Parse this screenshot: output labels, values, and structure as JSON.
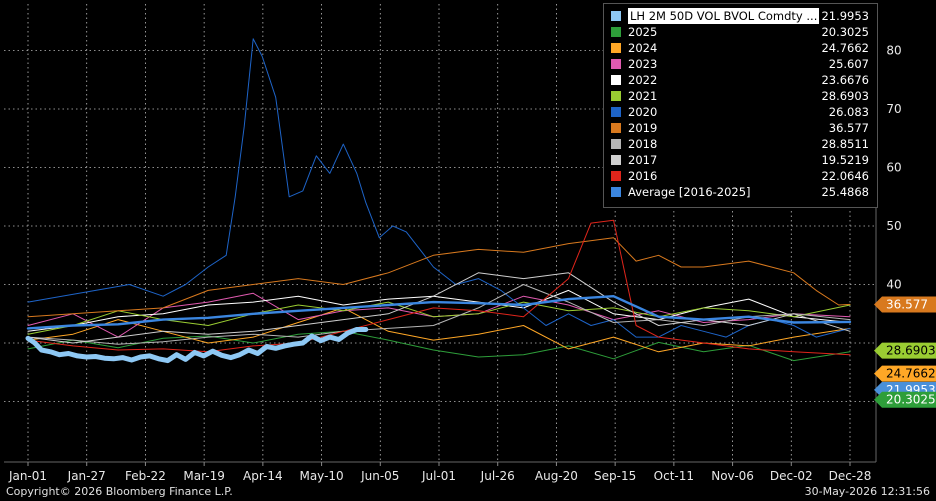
{
  "chart_data": {
    "type": "line",
    "ylim": [
      0,
      90
    ],
    "yticks": [
      40,
      50,
      60,
      70,
      80
    ],
    "x_tick_labels": [
      "Jan-01",
      "Jan-27",
      "Feb-22",
      "Mar-19",
      "Apr-14",
      "May-10",
      "Jun-05",
      "Jul-01",
      "Jul-26",
      "Aug-20",
      "Sep-15",
      "Oct-11",
      "Nov-06",
      "Dec-02",
      "Dec-28"
    ],
    "grid": true,
    "legend_position": "top-right",
    "series": [
      {
        "name": "LH 2M 50D VOL BVOL Comdty ...",
        "color": "#8ec8f4",
        "width": 5,
        "last": "21.9953",
        "badge": "21.9953",
        "badge_color": "#4a90d9",
        "x": [
          0,
          3,
          6,
          10,
          14,
          18,
          22,
          26,
          30,
          34,
          38,
          42,
          46,
          50,
          54,
          58,
          62,
          66,
          70,
          74,
          78,
          82,
          86,
          90,
          94,
          98,
          102,
          106,
          110,
          114,
          118,
          122,
          126,
          130,
          134,
          138,
          142,
          146,
          150
        ],
        "y": [
          30.8,
          30.0,
          28.8,
          28.5,
          28.0,
          28.2,
          27.8,
          27.6,
          27.7,
          27.4,
          27.3,
          27.5,
          27.1,
          27.6,
          27.8,
          27.3,
          27.0,
          28.0,
          27.2,
          28.4,
          27.8,
          28.6,
          27.9,
          27.5,
          28.0,
          28.8,
          28.2,
          29.4,
          29.1,
          29.5,
          29.8,
          30.0,
          31.2,
          30.4,
          31.0,
          30.6,
          31.7,
          32.3,
          32.3
        ]
      },
      {
        "name": "2025",
        "color": "#2e9e3a",
        "last": "20.3025",
        "badge": "20.3025",
        "badge_color": "#2e9e3a",
        "x": [
          0,
          20,
          40,
          60,
          80,
          100,
          120,
          140,
          160,
          180,
          200,
          220,
          240,
          260,
          280,
          300,
          320,
          340,
          365
        ],
        "y": [
          29.0,
          30.5,
          29.2,
          30.8,
          31.2,
          30.0,
          31.5,
          32.0,
          30.5,
          28.8,
          27.6,
          28.0,
          29.5,
          27.3,
          30.1,
          28.5,
          29.6,
          27.0,
          28.5
        ]
      },
      {
        "name": "2024",
        "color": "#ffa726",
        "last": "24.7662",
        "badge": "24.7662",
        "badge_color": "#ffa726",
        "x": [
          0,
          20,
          40,
          60,
          80,
          100,
          120,
          140,
          160,
          180,
          200,
          220,
          240,
          260,
          280,
          300,
          320,
          340,
          365
        ],
        "y": [
          30.5,
          31.5,
          34.0,
          32.0,
          30.0,
          31.0,
          33.5,
          36.0,
          32.0,
          30.5,
          31.5,
          33.0,
          29.0,
          31.0,
          28.5,
          30.0,
          29.5,
          31.0,
          32.5
        ]
      },
      {
        "name": "2023",
        "color": "#e05ab0",
        "last": "25.607",
        "x": [
          0,
          20,
          40,
          60,
          80,
          100,
          120,
          140,
          160,
          180,
          200,
          220,
          240,
          260,
          280,
          300,
          320,
          340,
          365
        ],
        "y": [
          33.0,
          35.0,
          31.0,
          36.0,
          37.0,
          38.5,
          34.0,
          35.5,
          36.0,
          34.5,
          35.0,
          38.0,
          36.5,
          34.0,
          35.5,
          33.5,
          34.0,
          35.0,
          34.5
        ]
      },
      {
        "name": "2022",
        "color": "#ffffff",
        "last": "23.6676",
        "x": [
          0,
          20,
          40,
          60,
          80,
          100,
          120,
          140,
          160,
          180,
          200,
          220,
          240,
          260,
          280,
          300,
          320,
          340,
          365
        ],
        "y": [
          32.0,
          33.0,
          34.5,
          35.0,
          36.5,
          37.0,
          38.0,
          36.5,
          37.5,
          38.0,
          37.0,
          36.0,
          39.0,
          35.0,
          34.0,
          36.0,
          37.5,
          34.5,
          33.5
        ]
      },
      {
        "name": "2021",
        "color": "#9acd32",
        "last": "28.6903",
        "badge": "28.6903",
        "badge_color": "#9acd32",
        "x": [
          0,
          20,
          40,
          60,
          80,
          100,
          120,
          140,
          160,
          180,
          200,
          220,
          240,
          260,
          280,
          300,
          320,
          340,
          365
        ],
        "y": [
          31.5,
          33.0,
          35.5,
          34.0,
          33.0,
          35.0,
          36.5,
          35.5,
          37.0,
          34.5,
          35.0,
          37.0,
          35.5,
          36.0,
          34.5,
          36.0,
          35.5,
          34.5,
          36.5
        ]
      },
      {
        "name": "2020",
        "color": "#1e64c8",
        "last": "26.083",
        "x": [
          0,
          15,
          30,
          45,
          60,
          70,
          80,
          88,
          92,
          96,
          100,
          104,
          110,
          116,
          122,
          128,
          134,
          140,
          146,
          150,
          156,
          162,
          168,
          174,
          180,
          190,
          200,
          210,
          220,
          230,
          240,
          250,
          260,
          270,
          280,
          290,
          300,
          310,
          320,
          330,
          340,
          350,
          365
        ],
        "y": [
          37.0,
          38.0,
          39.0,
          40.0,
          38.0,
          40.0,
          43.0,
          45.0,
          55.0,
          67.0,
          82.0,
          79.0,
          72.0,
          55.0,
          56.0,
          62.0,
          59.0,
          64.0,
          59.0,
          54.0,
          48.0,
          50.0,
          49.0,
          46.0,
          43.0,
          40.0,
          41.0,
          39.0,
          36.0,
          33.0,
          35.0,
          33.0,
          34.0,
          31.0,
          31.0,
          33.0,
          32.0,
          31.0,
          33.0,
          34.0,
          33.0,
          31.0,
          32.5
        ]
      },
      {
        "name": "2019",
        "color": "#d8791e",
        "last": "36.577",
        "badge": "36.577",
        "badge_color": "#d8791e",
        "x": [
          0,
          20,
          40,
          60,
          80,
          100,
          120,
          140,
          160,
          180,
          200,
          220,
          240,
          260,
          270,
          280,
          290,
          300,
          320,
          340,
          350,
          360,
          365
        ],
        "y": [
          34.5,
          35.0,
          35.5,
          36.0,
          39.0,
          40.0,
          41.0,
          40.0,
          42.0,
          45.0,
          46.0,
          45.5,
          47.0,
          48.0,
          44.0,
          45.0,
          43.0,
          43.0,
          44.0,
          42.0,
          39.0,
          36.5,
          36.6
        ]
      },
      {
        "name": "2018",
        "color": "#b5b5b5",
        "last": "28.8511",
        "x": [
          0,
          20,
          40,
          60,
          80,
          100,
          120,
          140,
          160,
          180,
          200,
          220,
          240,
          260,
          280,
          300,
          320,
          340,
          365
        ],
        "y": [
          31.0,
          30.5,
          29.8,
          30.2,
          31.0,
          31.5,
          31.0,
          32.0,
          32.5,
          33.0,
          36.0,
          40.0,
          37.0,
          33.5,
          34.0,
          33.0,
          34.5,
          35.0,
          34.0
        ]
      },
      {
        "name": "2017",
        "color": "#cfcfcf",
        "last": "19.5219",
        "x": [
          0,
          20,
          40,
          60,
          80,
          100,
          120,
          140,
          160,
          180,
          200,
          220,
          240,
          260,
          280,
          300,
          320,
          340,
          365
        ],
        "y": [
          31.0,
          30.0,
          31.0,
          32.0,
          31.5,
          32.0,
          33.0,
          34.0,
          35.0,
          38.0,
          42.0,
          41.0,
          42.0,
          37.0,
          33.0,
          34.0,
          33.0,
          35.0,
          32.0
        ]
      },
      {
        "name": "2016",
        "color": "#e0251b",
        "last": "22.0646",
        "x": [
          0,
          20,
          40,
          60,
          80,
          100,
          120,
          140,
          160,
          180,
          200,
          220,
          240,
          250,
          260,
          270,
          280,
          300,
          320,
          340,
          365
        ],
        "y": [
          30.5,
          29.5,
          28.8,
          29.0,
          28.5,
          29.5,
          30.0,
          32.0,
          34.0,
          36.0,
          35.5,
          34.5,
          41.0,
          50.5,
          51.0,
          33.0,
          31.0,
          30.0,
          29.0,
          28.5,
          28.0
        ]
      },
      {
        "name": "Average  [2016-2025]",
        "color": "#3b86e0",
        "width": 2.4,
        "last": "25.4868",
        "x": [
          0,
          20,
          40,
          60,
          80,
          100,
          120,
          140,
          160,
          180,
          200,
          220,
          240,
          260,
          280,
          300,
          320,
          340,
          365
        ],
        "y": [
          32.5,
          33.0,
          33.2,
          34.0,
          34.3,
          35.0,
          35.5,
          36.0,
          36.5,
          37.0,
          36.8,
          36.5,
          37.5,
          38.0,
          34.5,
          34.0,
          34.5,
          33.5,
          33.6
        ]
      }
    ]
  },
  "footer": {
    "copyright": "Copyright© 2026 Bloomberg Finance L.P.",
    "timestamp": "30-May-2026 12:31:56"
  }
}
